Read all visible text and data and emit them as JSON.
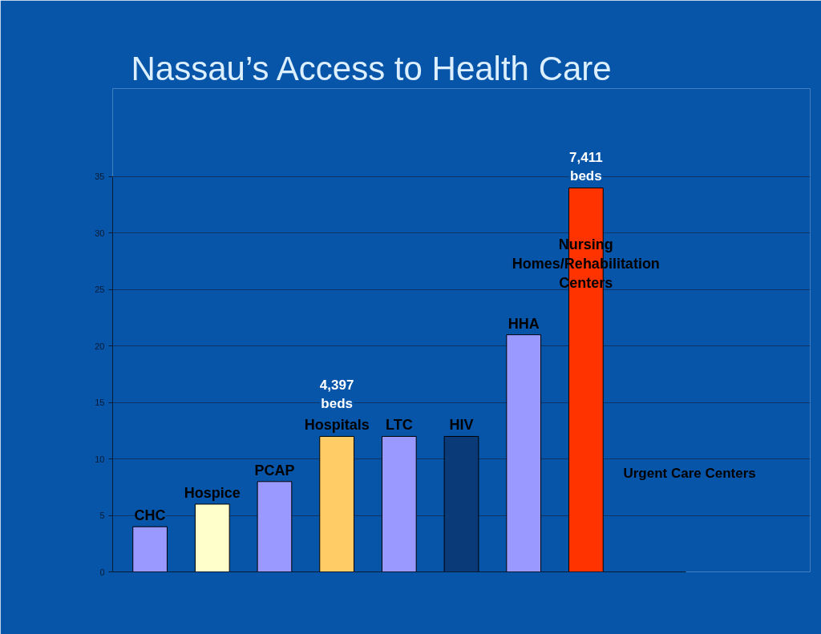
{
  "chart_data": {
    "type": "bar",
    "title": "Nassau’s Access to Health Care",
    "categories": [
      "CHC",
      "Hospice",
      "PCAP",
      "Hospitals",
      "LTC",
      "HIV",
      "HHA",
      "Nursing Homes/Rehabilitation Centers"
    ],
    "values": [
      4,
      6,
      8,
      12,
      12,
      12,
      21,
      34
    ],
    "colors": [
      "#9999ff",
      "#ffffcc",
      "#9999ff",
      "#ffcc66",
      "#9999ff",
      "#0a3a78",
      "#9999ff",
      "#ff3300"
    ],
    "ylim": [
      0,
      35
    ],
    "yticks": [
      0,
      5,
      10,
      15,
      20,
      25,
      30,
      35
    ],
    "grid": "y",
    "tick_labels": "y",
    "annotations": [
      {
        "text": "4,397\nbeds",
        "x": "Hospitals",
        "y": 12
      },
      {
        "text": "7,411\nbeds",
        "x": "Nursing Homes/Rehabilitation Centers",
        "y": 34
      },
      "Urgent Care Centers"
    ]
  }
}
